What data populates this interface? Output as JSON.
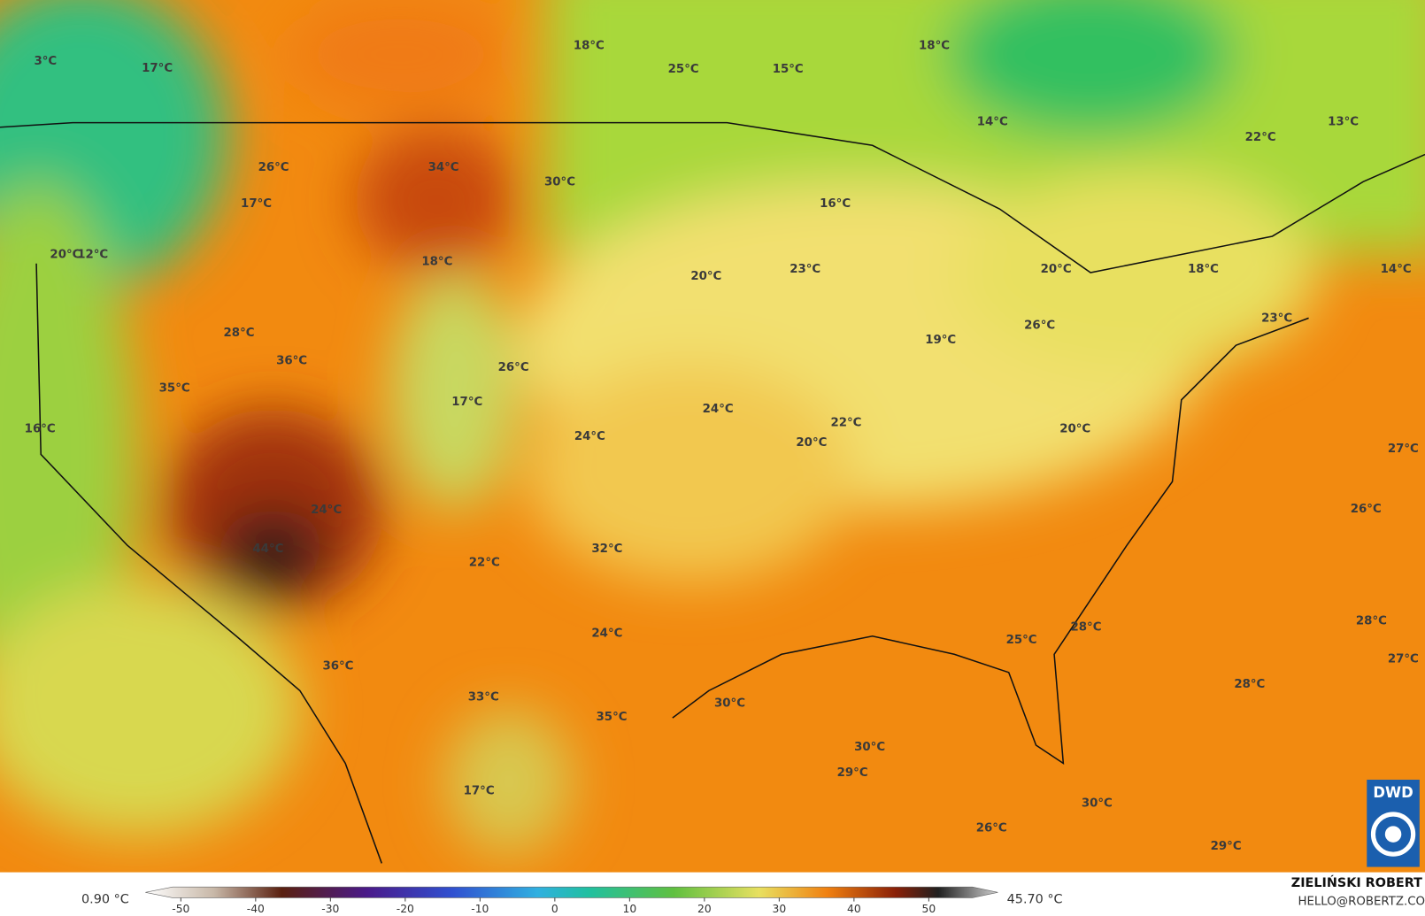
{
  "map": {
    "labels": [
      "3°C",
      "17°C",
      "18°C",
      "25°C",
      "15°C",
      "18°C",
      "14°C",
      "13°C",
      "22°C",
      "26°C",
      "34°C",
      "30°C",
      "17°C",
      "16°C",
      "20°C",
      "12°C",
      "18°C",
      "20°C",
      "23°C",
      "20°C",
      "18°C",
      "14°C",
      "26°C",
      "23°C",
      "28°C",
      "19°C",
      "36°C",
      "26°C",
      "35°C",
      "17°C",
      "24°C",
      "22°C",
      "16°C",
      "20°C",
      "24°C",
      "20°C",
      "27°C",
      "26°C",
      "24°C",
      "44°C",
      "32°C",
      "22°C",
      "28°C",
      "28°C",
      "24°C",
      "25°C",
      "27°C",
      "36°C",
      "28°C",
      "33°C",
      "30°C",
      "35°C",
      "30°C",
      "29°C",
      "17°C",
      "30°C",
      "26°C",
      "29°C"
    ],
    "legend": {
      "min_label": "0.90 °C",
      "max_label": "45.70 °C",
      "ticks": [
        -50,
        -40,
        -30,
        -20,
        -10,
        0,
        10,
        20,
        30,
        40,
        50
      ]
    },
    "credit": {
      "name": "ZIELIŃSKI ROBERT",
      "contact": "HELLO@ROBERTZ.CO"
    },
    "logo": "DWD"
  }
}
